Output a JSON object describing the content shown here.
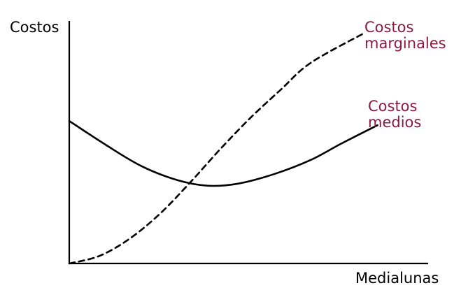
{
  "chart_data": {
    "type": "line",
    "ylabel": "Costos",
    "xlabel": "Medialunas",
    "grid": false,
    "ticks": false,
    "xlim": [
      0,
      10
    ],
    "ylim": [
      0,
      10
    ],
    "label_color": "#8b1a3f",
    "line_color": "#000000",
    "series": [
      {
        "name_lines": [
          "Costos",
          "marginales"
        ],
        "style": "dashed",
        "points": [
          [
            0,
            0
          ],
          [
            1,
            0.35
          ],
          [
            2,
            1.15
          ],
          [
            3,
            2.3
          ],
          [
            4,
            3.75
          ],
          [
            5,
            5.3
          ],
          [
            6,
            6.75
          ],
          [
            7,
            8.05
          ],
          [
            8,
            9.3
          ],
          [
            9.8,
            10.7
          ]
        ]
      },
      {
        "name_lines": [
          "Costos",
          "medios"
        ],
        "style": "solid",
        "points": [
          [
            0,
            6.6
          ],
          [
            1.2,
            5.5
          ],
          [
            2.4,
            4.5
          ],
          [
            3.6,
            3.85
          ],
          [
            4.6,
            3.6
          ],
          [
            5.6,
            3.7
          ],
          [
            6.8,
            4.15
          ],
          [
            8,
            4.8
          ],
          [
            9,
            5.55
          ],
          [
            10.2,
            6.4
          ]
        ]
      }
    ]
  }
}
